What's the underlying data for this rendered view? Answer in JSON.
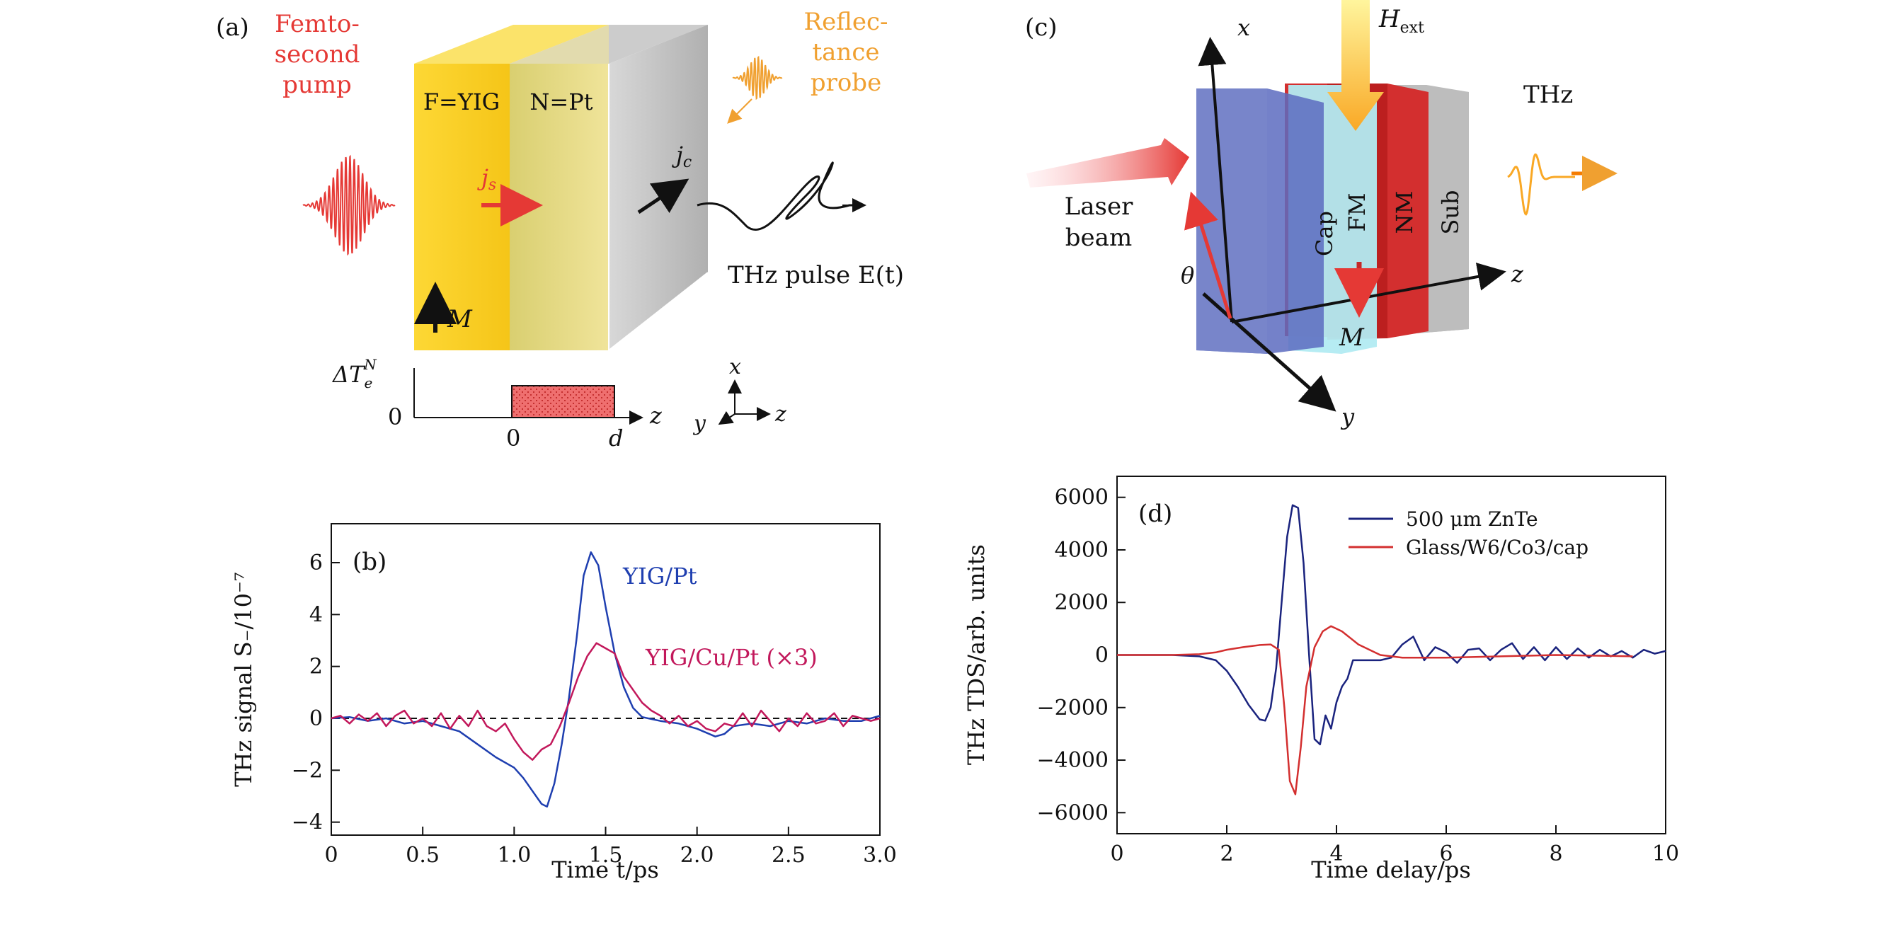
{
  "figure": {
    "panel_a": {
      "tag": "(a)",
      "pump_label": [
        "Femto-",
        "second",
        "pump"
      ],
      "probe_label": [
        "Reflec-",
        "tance",
        "probe"
      ],
      "layer_f": "F=YIG",
      "layer_n": "N=Pt",
      "js": "j",
      "js_sub": "s",
      "jc": "j",
      "jc_sub": "c",
      "magnet": "M",
      "thz_pulse": "THz pulse E(t)",
      "delta_t": "ΔT",
      "delta_t_sub": "e",
      "delta_t_sup": "N",
      "zero_y": "0",
      "zero_x": "0",
      "d_label": "d",
      "z_axis": "z",
      "axes_x": "x",
      "axes_y": "y",
      "axes_z": "z"
    },
    "panel_c": {
      "tag": "(c)",
      "x_axis": "x",
      "y_axis": "y",
      "z_axis": "z",
      "h_ext": "H",
      "h_ext_sub": "ext",
      "laser": [
        "Laser",
        "beam"
      ],
      "thz": "THz",
      "theta": "θ",
      "layers": [
        "Cap",
        "FM",
        "NM",
        "Sub"
      ],
      "magnet": "M"
    }
  },
  "chart_data": [
    {
      "panel": "(b)",
      "type": "line",
      "xlabel": "Time t/ps",
      "ylabel": "THz signal S₋/10⁻⁷",
      "xlim": [
        0,
        3.0
      ],
      "ylim": [
        -4.5,
        7.5
      ],
      "xticks": [
        "0",
        "0.5",
        "1.0",
        "1.5",
        "2.0",
        "2.5",
        "3.0"
      ],
      "yticks": [
        "−4",
        "−2",
        "0",
        "2",
        "4",
        "6"
      ],
      "series": [
        {
          "name": "YIG/Pt",
          "color": "#1f3fb0",
          "x": [
            0,
            0.1,
            0.2,
            0.3,
            0.4,
            0.5,
            0.6,
            0.7,
            0.8,
            0.9,
            1.0,
            1.05,
            1.1,
            1.15,
            1.18,
            1.22,
            1.26,
            1.3,
            1.34,
            1.38,
            1.42,
            1.46,
            1.5,
            1.55,
            1.6,
            1.65,
            1.7,
            1.8,
            1.9,
            2.0,
            2.1,
            2.15,
            2.2,
            2.3,
            2.4,
            2.5,
            2.6,
            2.7,
            2.8,
            2.9,
            3.0
          ],
          "y": [
            0,
            0.05,
            -0.1,
            0.0,
            -0.2,
            -0.1,
            -0.3,
            -0.5,
            -1.0,
            -1.5,
            -1.9,
            -2.3,
            -2.8,
            -3.3,
            -3.4,
            -2.5,
            -1.0,
            0.8,
            3.0,
            5.5,
            6.4,
            5.9,
            4.3,
            2.5,
            1.2,
            0.4,
            0.05,
            -0.1,
            -0.2,
            -0.4,
            -0.7,
            -0.6,
            -0.3,
            -0.2,
            -0.3,
            -0.1,
            -0.2,
            0.0,
            -0.1,
            -0.1,
            0.1
          ]
        },
        {
          "name": "YIG/Cu/Pt (×3)",
          "color": "#c2185b",
          "x": [
            0,
            0.05,
            0.1,
            0.15,
            0.2,
            0.25,
            0.3,
            0.35,
            0.4,
            0.45,
            0.5,
            0.55,
            0.6,
            0.65,
            0.7,
            0.75,
            0.8,
            0.85,
            0.9,
            0.95,
            1.0,
            1.05,
            1.1,
            1.15,
            1.2,
            1.25,
            1.3,
            1.35,
            1.4,
            1.45,
            1.5,
            1.55,
            1.6,
            1.65,
            1.7,
            1.75,
            1.8,
            1.85,
            1.9,
            1.95,
            2.0,
            2.05,
            2.1,
            2.15,
            2.2,
            2.25,
            2.3,
            2.35,
            2.4,
            2.45,
            2.5,
            2.55,
            2.6,
            2.65,
            2.7,
            2.75,
            2.8,
            2.85,
            2.9,
            2.95,
            3.0
          ],
          "y": [
            0,
            0.1,
            -0.2,
            0.15,
            -0.1,
            0.2,
            -0.3,
            0.1,
            0.3,
            -0.2,
            0.0,
            -0.3,
            0.2,
            -0.4,
            0.1,
            -0.3,
            0.3,
            -0.3,
            -0.5,
            -0.2,
            -0.8,
            -1.3,
            -1.6,
            -1.2,
            -1.0,
            -0.3,
            0.6,
            1.6,
            2.4,
            2.9,
            2.7,
            2.5,
            1.6,
            1.1,
            0.6,
            0.3,
            0.1,
            -0.2,
            0.1,
            -0.3,
            -0.1,
            -0.4,
            -0.5,
            -0.2,
            -0.3,
            0.2,
            -0.3,
            0.3,
            -0.1,
            -0.5,
            0.0,
            -0.3,
            0.2,
            -0.2,
            -0.1,
            0.2,
            -0.3,
            0.1,
            0.0,
            -0.1,
            0.0
          ]
        }
      ],
      "reference_line": 0,
      "tag": "(b)"
    },
    {
      "panel": "(d)",
      "type": "line",
      "xlabel": "Time delay/ps",
      "ylabel": "THz TDS/arb. units",
      "xlim": [
        0,
        10
      ],
      "ylim": [
        -6800,
        6800
      ],
      "xticks": [
        "0",
        "2",
        "4",
        "6",
        "8",
        "10"
      ],
      "yticks": [
        "−6000",
        "−4000",
        "−2000",
        "0",
        "2000",
        "4000",
        "6000"
      ],
      "legend_position": "top-right",
      "series": [
        {
          "name": "500 μm ZnTe",
          "color": "#1a237e",
          "x": [
            0,
            1,
            1.5,
            1.8,
            2.0,
            2.2,
            2.4,
            2.6,
            2.7,
            2.8,
            2.9,
            3.0,
            3.1,
            3.2,
            3.3,
            3.4,
            3.5,
            3.6,
            3.7,
            3.8,
            3.9,
            4.0,
            4.1,
            4.2,
            4.3,
            4.5,
            4.8,
            5.0,
            5.2,
            5.4,
            5.6,
            5.8,
            6.0,
            6.2,
            6.4,
            6.6,
            6.8,
            7.0,
            7.2,
            7.4,
            7.6,
            7.8,
            8.0,
            8.2,
            8.4,
            8.6,
            8.8,
            9.0,
            9.2,
            9.4,
            9.6,
            9.8,
            10
          ],
          "y": [
            0,
            0,
            -50,
            -200,
            -600,
            -1200,
            -1900,
            -2450,
            -2500,
            -2000,
            -500,
            2000,
            4500,
            5700,
            5600,
            3500,
            0,
            -3200,
            -3400,
            -2300,
            -2800,
            -1800,
            -1200,
            -900,
            -200,
            -200,
            -200,
            -100,
            400,
            700,
            -200,
            300,
            100,
            -300,
            200,
            250,
            -200,
            200,
            450,
            -150,
            300,
            -200,
            300,
            -150,
            250,
            -100,
            200,
            -50,
            150,
            -100,
            200,
            50,
            150
          ]
        },
        {
          "name": "Glass/W6/Co3/cap",
          "color": "#d32f2f",
          "x": [
            0,
            1,
            1.5,
            1.8,
            2.0,
            2.3,
            2.6,
            2.8,
            2.95,
            3.05,
            3.15,
            3.25,
            3.35,
            3.45,
            3.6,
            3.75,
            3.9,
            4.1,
            4.4,
            4.8,
            5.2,
            6.0,
            7.0,
            8.0,
            9.4
          ],
          "y": [
            0,
            0,
            30,
            100,
            200,
            300,
            380,
            400,
            200,
            -2000,
            -4800,
            -5300,
            -3500,
            -1200,
            300,
            900,
            1100,
            900,
            400,
            0,
            -100,
            -100,
            -50,
            0,
            -50
          ]
        }
      ],
      "tag": "(d)"
    }
  ]
}
